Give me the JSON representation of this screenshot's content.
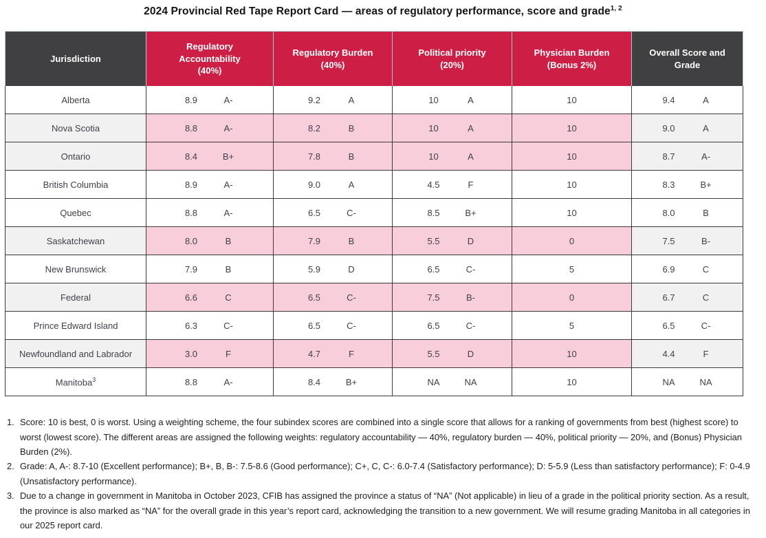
{
  "page_title": {
    "text": "2024 Provincial Red Tape Report Card — areas of regulatory performance, score and grade",
    "superscript": "1, 2"
  },
  "colors": {
    "header_red": "#cd1f45",
    "header_dark": "#404042",
    "highlight_pink": "#f8cedb",
    "highlight_gray": "#f1f1f2",
    "body_border": "#3a3a3a",
    "header_border": "#b9c7d3",
    "table_text": "#3f3f4a"
  },
  "chart_data": {
    "type": "table",
    "columns": [
      {
        "label": "Jurisdiction",
        "sub": "",
        "style": "dark"
      },
      {
        "label": "Regulatory Accountability",
        "sub": "(40%)",
        "style": "red"
      },
      {
        "label": "Regulatory Burden",
        "sub": "(40%)",
        "style": "red"
      },
      {
        "label": "Political priority",
        "sub": "(20%)",
        "style": "red"
      },
      {
        "label": "Physician Burden",
        "sub": "(Bonus 2%)",
        "style": "red"
      },
      {
        "label": "Overall Score and Grade",
        "sub": "",
        "style": "dark"
      }
    ],
    "rows": [
      {
        "jurisdiction": "Alberta",
        "sup": "",
        "highlight": false,
        "regulatory_accountability": [
          "8.9",
          "A-"
        ],
        "regulatory_burden": [
          "9.2",
          "A"
        ],
        "political_priority": [
          "10",
          "A"
        ],
        "physician_burden": "10",
        "overall": [
          "9.4",
          "A"
        ]
      },
      {
        "jurisdiction": "Nova Scotia",
        "sup": "",
        "highlight": true,
        "regulatory_accountability": [
          "8.8",
          "A-"
        ],
        "regulatory_burden": [
          "8.2",
          "B"
        ],
        "political_priority": [
          "10",
          "A"
        ],
        "physician_burden": "10",
        "overall": [
          "9.0",
          "A"
        ]
      },
      {
        "jurisdiction": "Ontario",
        "sup": "",
        "highlight": true,
        "regulatory_accountability": [
          "8.4",
          "B+"
        ],
        "regulatory_burden": [
          "7.8",
          "B"
        ],
        "political_priority": [
          "10",
          "A"
        ],
        "physician_burden": "10",
        "overall": [
          "8.7",
          "A-"
        ]
      },
      {
        "jurisdiction": "British Columbia",
        "sup": "",
        "highlight": false,
        "regulatory_accountability": [
          "8.9",
          "A-"
        ],
        "regulatory_burden": [
          "9.0",
          "A"
        ],
        "political_priority": [
          "4.5",
          "F"
        ],
        "physician_burden": "10",
        "overall": [
          "8.3",
          "B+"
        ]
      },
      {
        "jurisdiction": "Quebec",
        "sup": "",
        "highlight": false,
        "regulatory_accountability": [
          "8.8",
          "A-"
        ],
        "regulatory_burden": [
          "6.5",
          "C-"
        ],
        "political_priority": [
          "8.5",
          "B+"
        ],
        "physician_burden": "10",
        "overall": [
          "8.0",
          "B"
        ]
      },
      {
        "jurisdiction": "Saskatchewan",
        "sup": "",
        "highlight": true,
        "regulatory_accountability": [
          "8.0",
          "B"
        ],
        "regulatory_burden": [
          "7.9",
          "B"
        ],
        "political_priority": [
          "5.5",
          "D"
        ],
        "physician_burden": "0",
        "overall": [
          "7.5",
          "B-"
        ]
      },
      {
        "jurisdiction": "New Brunswick",
        "sup": "",
        "highlight": false,
        "regulatory_accountability": [
          "7.9",
          "B"
        ],
        "regulatory_burden": [
          "5.9",
          "D"
        ],
        "political_priority": [
          "6.5",
          "C-"
        ],
        "physician_burden": "5",
        "overall": [
          "6.9",
          "C"
        ]
      },
      {
        "jurisdiction": "Federal",
        "sup": "",
        "highlight": true,
        "regulatory_accountability": [
          "6.6",
          "C"
        ],
        "regulatory_burden": [
          "6.5",
          "C-"
        ],
        "political_priority": [
          "7.5",
          "B-"
        ],
        "physician_burden": "0",
        "overall": [
          "6.7",
          "C"
        ]
      },
      {
        "jurisdiction": "Prince Edward Island",
        "sup": "",
        "highlight": false,
        "regulatory_accountability": [
          "6.3",
          "C-"
        ],
        "regulatory_burden": [
          "6.5",
          "C-"
        ],
        "political_priority": [
          "6.5",
          "C-"
        ],
        "physician_burden": "5",
        "overall": [
          "6.5",
          "C-"
        ]
      },
      {
        "jurisdiction": "Newfoundland and Labrador",
        "sup": "",
        "highlight": true,
        "regulatory_accountability": [
          "3.0",
          "F"
        ],
        "regulatory_burden": [
          "4.7",
          "F"
        ],
        "political_priority": [
          "5.5",
          "D"
        ],
        "physician_burden": "10",
        "overall": [
          "4.4",
          "F"
        ]
      },
      {
        "jurisdiction": "Manitoba",
        "sup": "3",
        "highlight": false,
        "regulatory_accountability": [
          "8.8",
          "A-"
        ],
        "regulatory_burden": [
          "8.4",
          "B+"
        ],
        "political_priority": [
          "NA",
          "NA"
        ],
        "physician_burden": "10",
        "overall": [
          "NA",
          "NA"
        ]
      }
    ]
  },
  "footnotes": [
    {
      "num": "1.",
      "text": "Score: 10 is best, 0 is worst. Using a weighting scheme, the four subindex scores are combined into a single score that allows for a ranking of governments from best (highest score) to worst (lowest score). The different areas are assigned the following weights: regulatory accountability — 40%, regulatory burden — 40%, political priority — 20%, and (Bonus) Physician Burden (2%)."
    },
    {
      "num": "2.",
      "text": "Grade: A, A-: 8.7-10 (Excellent performance); B+, B, B-: 7.5-8.6 (Good performance); C+, C, C-: 6.0-7.4 (Satisfactory performance); D: 5-5.9 (Less than satisfactory performance); F: 0-4.9 (Unsatisfactory performance)."
    },
    {
      "num": "3.",
      "text": "Due to a change in government in Manitoba in October 2023, CFIB has assigned the province a status of “NA” (Not applicable) in lieu of a grade in the political priority section. As a result, the province is also marked as “NA” for the overall grade in this year’s report card, acknowledging the transition to a new government. We will resume grading Manitoba in all categories in our 2025 report card."
    }
  ]
}
